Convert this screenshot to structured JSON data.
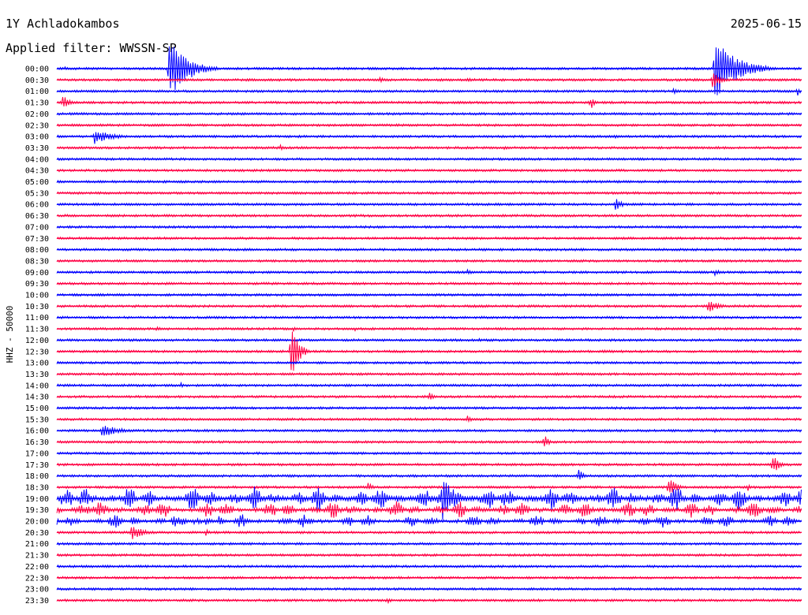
{
  "header": {
    "station": "1Y Achladokambos",
    "date": "2025-06-15",
    "filter": "Applied filter: WWSSN-SP"
  },
  "chart_data": {
    "type": "line",
    "title": "1Y Achladokambos",
    "ylabel": "HHZ - 50000",
    "row_labels": [
      "00:00",
      "00:30",
      "01:00",
      "01:30",
      "02:00",
      "02:30",
      "03:00",
      "03:30",
      "04:00",
      "04:30",
      "05:00",
      "05:30",
      "06:00",
      "06:30",
      "07:00",
      "07:30",
      "08:00",
      "08:30",
      "09:00",
      "09:30",
      "10:00",
      "10:30",
      "11:00",
      "11:30",
      "12:00",
      "12:30",
      "13:00",
      "13:30",
      "14:00",
      "14:30",
      "15:00",
      "15:30",
      "16:00",
      "16:30",
      "17:00",
      "17:30",
      "18:00",
      "18:30",
      "19:00",
      "19:30",
      "20:00",
      "20:30",
      "21:00",
      "21:30",
      "22:00",
      "22:30",
      "23:00",
      "23:30"
    ],
    "row_minutes": 30,
    "colors": [
      "#0000ff",
      "#ff0044"
    ],
    "grid": false,
    "events": [
      {
        "row": 0,
        "min": 4.5,
        "amp": 45,
        "dur": 2.0
      },
      {
        "row": 0,
        "min": 26.5,
        "amp": 40,
        "dur": 2.5
      },
      {
        "row": 0,
        "min": 0.3,
        "amp": 3,
        "dur": 0.5
      },
      {
        "row": 1,
        "min": 13.0,
        "amp": 5,
        "dur": 0.6
      },
      {
        "row": 1,
        "min": 16.5,
        "amp": 4,
        "dur": 0.8
      },
      {
        "row": 1,
        "min": 26.4,
        "amp": 14,
        "dur": 0.8
      },
      {
        "row": 2,
        "min": 10.5,
        "amp": 2,
        "dur": 0.4
      },
      {
        "row": 2,
        "min": 24.8,
        "amp": 5,
        "dur": 0.7
      },
      {
        "row": 2,
        "min": 29.8,
        "amp": 9,
        "dur": 0.3
      },
      {
        "row": 3,
        "min": 0.2,
        "amp": 12,
        "dur": 0.7
      },
      {
        "row": 3,
        "min": 9.5,
        "amp": 3,
        "dur": 0.5
      },
      {
        "row": 3,
        "min": 21.5,
        "amp": 14,
        "dur": 0.3
      },
      {
        "row": 6,
        "min": 1.5,
        "amp": 10,
        "dur": 2.0
      },
      {
        "row": 6,
        "min": 22.5,
        "amp": 3,
        "dur": 0.6
      },
      {
        "row": 7,
        "min": 9.0,
        "amp": 4,
        "dur": 0.4
      },
      {
        "row": 7,
        "min": 18.0,
        "amp": 3,
        "dur": 0.8
      },
      {
        "row": 12,
        "min": 22.5,
        "amp": 9,
        "dur": 0.7
      },
      {
        "row": 18,
        "min": 16.5,
        "amp": 4,
        "dur": 0.8
      },
      {
        "row": 18,
        "min": 26.5,
        "amp": 4,
        "dur": 0.8
      },
      {
        "row": 21,
        "min": 26.2,
        "amp": 9,
        "dur": 1.3
      },
      {
        "row": 23,
        "min": 4.0,
        "amp": 3,
        "dur": 0.8
      },
      {
        "row": 23,
        "min": 9.5,
        "amp": 4,
        "dur": 0.5
      },
      {
        "row": 23,
        "min": 12.0,
        "amp": 3,
        "dur": 0.3
      },
      {
        "row": 24,
        "min": 17.0,
        "amp": 3,
        "dur": 0.6
      },
      {
        "row": 25,
        "min": 9.4,
        "amp": 45,
        "dur": 0.8
      },
      {
        "row": 25,
        "min": 22.0,
        "amp": 3,
        "dur": 0.8
      },
      {
        "row": 28,
        "min": 5.0,
        "amp": 4,
        "dur": 0.3
      },
      {
        "row": 29,
        "min": 15.0,
        "amp": 8,
        "dur": 0.4
      },
      {
        "row": 30,
        "min": 3.2,
        "amp": 3,
        "dur": 0.3
      },
      {
        "row": 31,
        "min": 16.5,
        "amp": 9,
        "dur": 0.4
      },
      {
        "row": 32,
        "min": 1.8,
        "amp": 9,
        "dur": 2.0
      },
      {
        "row": 32,
        "min": 26.5,
        "amp": 3,
        "dur": 0.3
      },
      {
        "row": 33,
        "min": 19.6,
        "amp": 12,
        "dur": 0.5
      },
      {
        "row": 35,
        "min": 28.8,
        "amp": 16,
        "dur": 0.7
      },
      {
        "row": 36,
        "min": 21.0,
        "amp": 9,
        "dur": 0.7
      },
      {
        "row": 37,
        "min": 12.5,
        "amp": 7,
        "dur": 0.6
      },
      {
        "row": 37,
        "min": 24.6,
        "amp": 16,
        "dur": 0.8
      },
      {
        "row": 37,
        "min": 27.8,
        "amp": 8,
        "dur": 0.3
      },
      {
        "row": 38,
        "min": 1.2,
        "amp": 8,
        "dur": 0.4
      },
      {
        "row": 38,
        "min": 7.0,
        "amp": 7,
        "dur": 0.4
      },
      {
        "row": 38,
        "min": 15.5,
        "amp": 30,
        "dur": 1.5
      },
      {
        "row": 38,
        "min": 8.0,
        "amp": 8,
        "dur": 0.4
      },
      {
        "row": 38,
        "min": 29.5,
        "amp": 7,
        "dur": 0.3
      },
      {
        "row": 39,
        "min": 1.2,
        "amp": 8,
        "dur": 0.5
      },
      {
        "row": 39,
        "min": 23.0,
        "amp": 12,
        "dur": 0.5
      },
      {
        "row": 40,
        "min": 6.0,
        "amp": 8,
        "dur": 0.6
      },
      {
        "row": 40,
        "min": 6.5,
        "amp": 9,
        "dur": 0.5
      },
      {
        "row": 41,
        "min": 3.0,
        "amp": 10,
        "dur": 1.5
      },
      {
        "row": 41,
        "min": 6.0,
        "amp": 5,
        "dur": 0.4
      },
      {
        "row": 47,
        "min": 13.3,
        "amp": 6,
        "dur": 0.4
      }
    ],
    "active_rows": [
      {
        "row": 38,
        "amp": 7
      },
      {
        "row": 39,
        "amp": 5
      },
      {
        "row": 40,
        "amp": 4
      }
    ]
  }
}
